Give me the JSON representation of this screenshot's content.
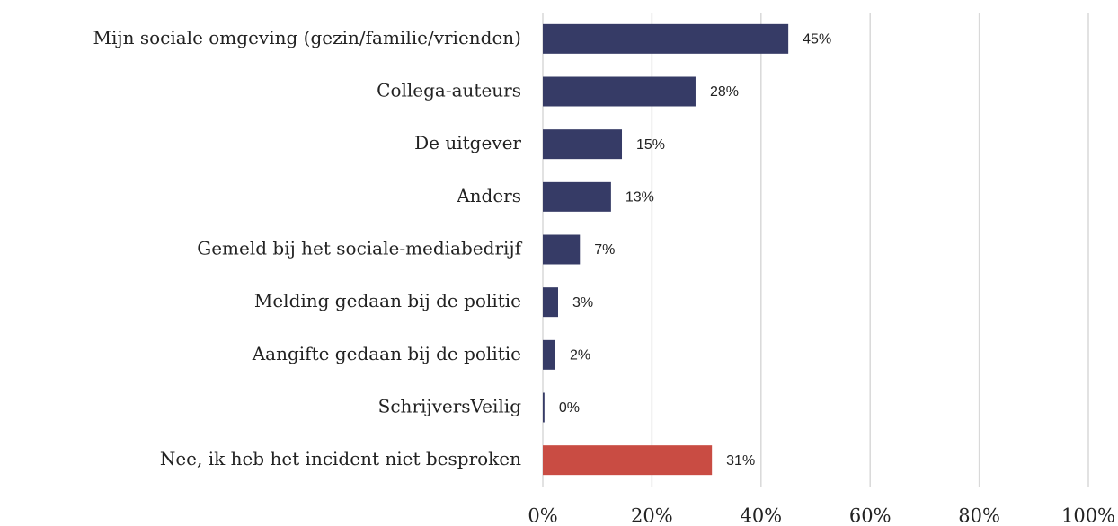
{
  "chart_data": {
    "type": "barh",
    "categories": [
      "Mijn sociale omgeving (gezin/familie/vrienden)",
      "Collega-auteurs",
      "De uitgever",
      "Anders",
      "Gemeld bij het sociale-mediabedrijf",
      "Melding gedaan bij de politie",
      "Aangifte gedaan bij de politie",
      "SchrijversVeilig",
      "Nee, ik heb het incident niet besproken"
    ],
    "values": [
      45,
      28,
      14.5,
      12.5,
      6.8,
      2.8,
      2.3,
      0.3,
      31
    ],
    "value_labels": [
      "45%",
      "28%",
      "15%",
      "13%",
      "7%",
      "3%",
      "2%",
      "0%",
      "31%"
    ],
    "colors": [
      "#363b66",
      "#363b66",
      "#363b66",
      "#363b66",
      "#363b66",
      "#363b66",
      "#363b66",
      "#363b66",
      "#c94c43"
    ],
    "xlim": [
      0,
      100
    ],
    "xticks": [
      {
        "value": 0,
        "label": "0%"
      },
      {
        "value": 20,
        "label": "20%"
      },
      {
        "value": 40,
        "label": "40%"
      },
      {
        "value": 60,
        "label": "60%"
      },
      {
        "value": 80,
        "label": "80%"
      },
      {
        "value": 100,
        "label": "100%"
      }
    ],
    "grid": true
  }
}
